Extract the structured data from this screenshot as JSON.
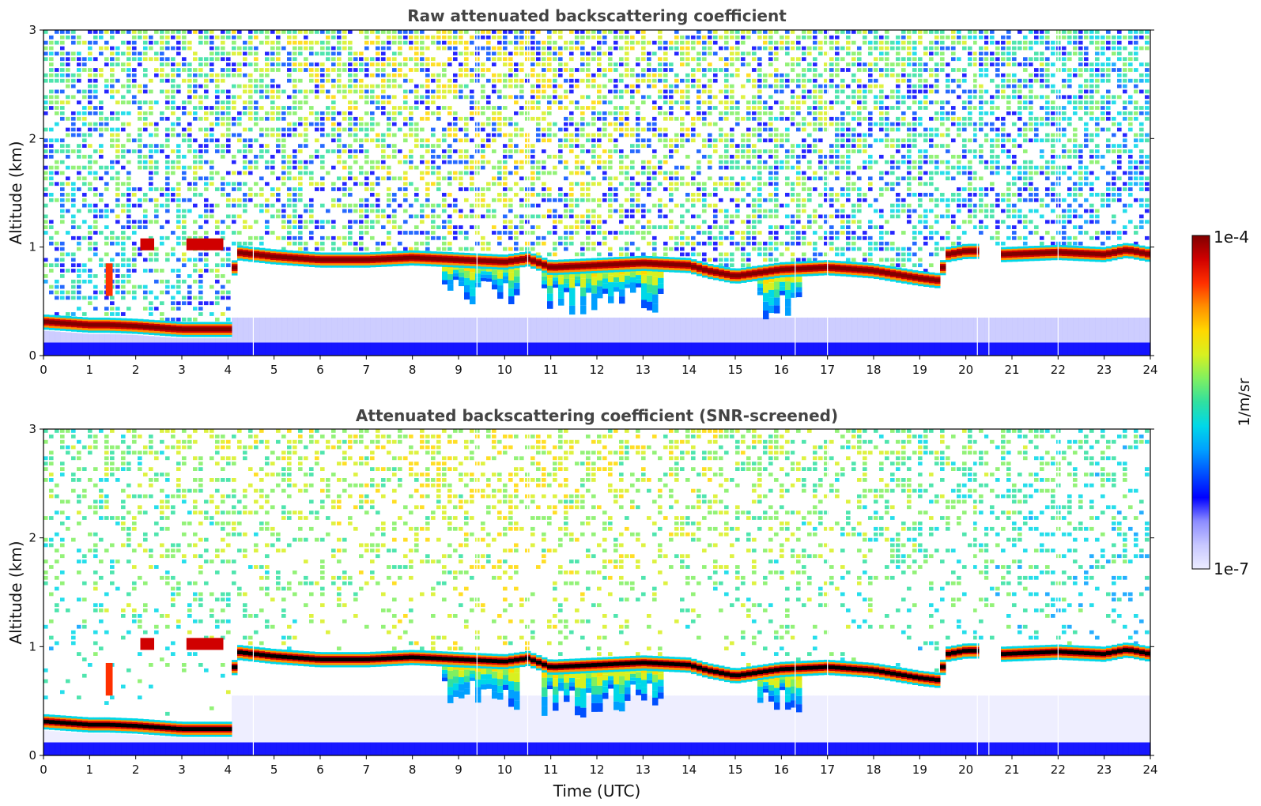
{
  "chart_data": [
    {
      "type": "heatmap",
      "title": "Raw attenuated backscattering coefficient",
      "xlabel": "",
      "ylabel": "Altitude (km)",
      "xlim": [
        0,
        24
      ],
      "ylim": [
        0,
        3
      ],
      "xticks": [
        "0",
        "1",
        "2",
        "3",
        "4",
        "5",
        "6",
        "7",
        "8",
        "9",
        "10",
        "11",
        "12",
        "13",
        "14",
        "15",
        "16",
        "17",
        "18",
        "19",
        "20",
        "21",
        "22",
        "23",
        "24"
      ],
      "yticks": [
        "0",
        "1",
        "2",
        "3"
      ],
      "screened": false,
      "cloud_base_km": [
        {
          "x": 0.0,
          "y": 0.28
        },
        {
          "x": 1.0,
          "y": 0.25
        },
        {
          "x": 1.4,
          "y": 0.25
        },
        {
          "x": 2.0,
          "y": 0.24
        },
        {
          "x": 3.0,
          "y": 0.21
        },
        {
          "x": 4.1,
          "y": 0.21
        },
        {
          "x": 4.15,
          "y": 0.92
        },
        {
          "x": 5.0,
          "y": 0.88
        },
        {
          "x": 6.0,
          "y": 0.85
        },
        {
          "x": 7.0,
          "y": 0.85
        },
        {
          "x": 8.0,
          "y": 0.87
        },
        {
          "x": 9.0,
          "y": 0.85
        },
        {
          "x": 10.0,
          "y": 0.83
        },
        {
          "x": 10.5,
          "y": 0.86
        },
        {
          "x": 11.0,
          "y": 0.78
        },
        {
          "x": 12.0,
          "y": 0.8
        },
        {
          "x": 13.0,
          "y": 0.82
        },
        {
          "x": 14.0,
          "y": 0.8
        },
        {
          "x": 14.4,
          "y": 0.75
        },
        {
          "x": 15.0,
          "y": 0.7
        },
        {
          "x": 16.0,
          "y": 0.76
        },
        {
          "x": 17.0,
          "y": 0.78
        },
        {
          "x": 18.0,
          "y": 0.75
        },
        {
          "x": 19.0,
          "y": 0.68
        },
        {
          "x": 19.4,
          "y": 0.66
        },
        {
          "x": 19.6,
          "y": 0.9
        },
        {
          "x": 20.0,
          "y": 0.93
        },
        {
          "x": 20.3,
          "y": 0.93
        },
        {
          "x": 20.8,
          "y": 0.9
        },
        {
          "x": 22.0,
          "y": 0.92
        },
        {
          "x": 23.0,
          "y": 0.9
        },
        {
          "x": 23.5,
          "y": 0.94
        },
        {
          "x": 24.0,
          "y": 0.9
        }
      ]
    },
    {
      "type": "heatmap",
      "title": "Attenuated backscattering coefficient (SNR-screened)",
      "xlabel": "Time (UTC)",
      "ylabel": "Altitude (km)",
      "xlim": [
        0,
        24
      ],
      "ylim": [
        0,
        3
      ],
      "xticks": [
        "0",
        "1",
        "2",
        "3",
        "4",
        "5",
        "6",
        "7",
        "8",
        "9",
        "10",
        "11",
        "12",
        "13",
        "14",
        "15",
        "16",
        "17",
        "18",
        "19",
        "20",
        "21",
        "22",
        "23",
        "24"
      ],
      "yticks": [
        "0",
        "1",
        "2",
        "3"
      ],
      "screened": true,
      "cloud_base_km": [
        {
          "x": 0.0,
          "y": 0.28
        },
        {
          "x": 1.0,
          "y": 0.25
        },
        {
          "x": 1.4,
          "y": 0.25
        },
        {
          "x": 2.0,
          "y": 0.24
        },
        {
          "x": 3.0,
          "y": 0.21
        },
        {
          "x": 4.1,
          "y": 0.21
        },
        {
          "x": 4.15,
          "y": 0.92
        },
        {
          "x": 5.0,
          "y": 0.88
        },
        {
          "x": 6.0,
          "y": 0.85
        },
        {
          "x": 7.0,
          "y": 0.85
        },
        {
          "x": 8.0,
          "y": 0.87
        },
        {
          "x": 9.0,
          "y": 0.85
        },
        {
          "x": 10.0,
          "y": 0.83
        },
        {
          "x": 10.5,
          "y": 0.86
        },
        {
          "x": 11.0,
          "y": 0.78
        },
        {
          "x": 12.0,
          "y": 0.8
        },
        {
          "x": 13.0,
          "y": 0.82
        },
        {
          "x": 14.0,
          "y": 0.8
        },
        {
          "x": 14.4,
          "y": 0.75
        },
        {
          "x": 15.0,
          "y": 0.7
        },
        {
          "x": 16.0,
          "y": 0.76
        },
        {
          "x": 17.0,
          "y": 0.78
        },
        {
          "x": 18.0,
          "y": 0.75
        },
        {
          "x": 19.0,
          "y": 0.68
        },
        {
          "x": 19.4,
          "y": 0.66
        },
        {
          "x": 19.6,
          "y": 0.9
        },
        {
          "x": 20.0,
          "y": 0.93
        },
        {
          "x": 20.3,
          "y": 0.93
        },
        {
          "x": 20.8,
          "y": 0.9
        },
        {
          "x": 22.0,
          "y": 0.92
        },
        {
          "x": 23.0,
          "y": 0.9
        },
        {
          "x": 23.5,
          "y": 0.94
        },
        {
          "x": 24.0,
          "y": 0.9
        }
      ]
    }
  ],
  "colorbar": {
    "min_label": "1e-7",
    "max_label": "1e-4",
    "unit": "1/m/sr",
    "scale": "log",
    "colors": [
      "#ececff",
      "#c8c8ff",
      "#8c8cff",
      "#0000ff",
      "#0050ff",
      "#00a0ff",
      "#00d8e8",
      "#30e0a0",
      "#80f060",
      "#d8f020",
      "#ffd800",
      "#ff9000",
      "#ff3000",
      "#d00000",
      "#800000"
    ]
  }
}
